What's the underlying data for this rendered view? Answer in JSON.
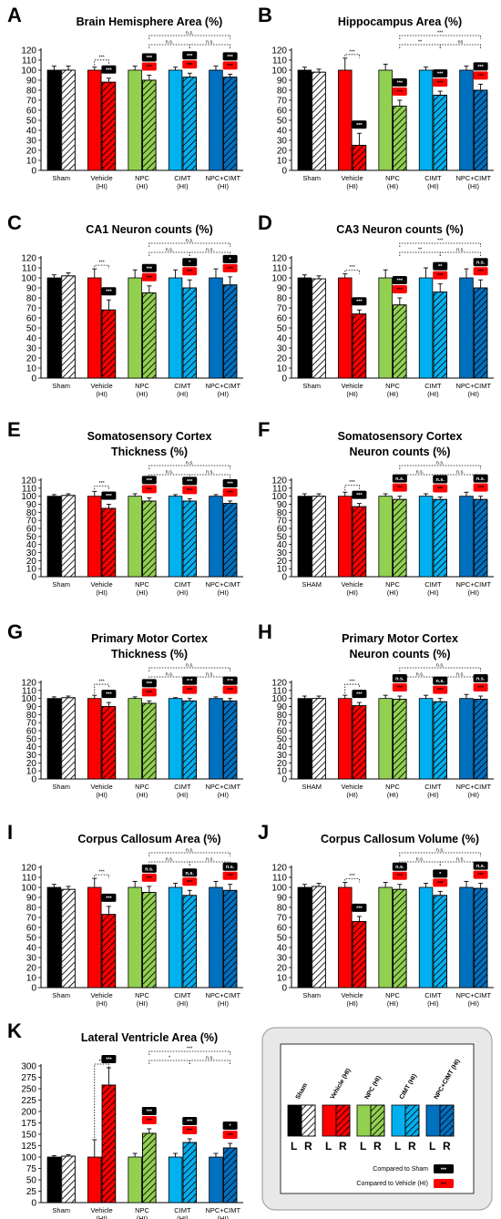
{
  "chart_data": [
    {
      "id": "A",
      "type": "bar",
      "letter": "A",
      "title": [
        "Brain Hemisphere Area (%)"
      ],
      "ylim": [
        0,
        120
      ],
      "yticks": [
        0,
        10,
        20,
        30,
        40,
        50,
        60,
        70,
        80,
        90,
        100,
        110,
        120
      ],
      "categories": [
        [
          "Sham"
        ],
        [
          "Vehicle",
          "(HI)"
        ],
        [
          "NPC",
          "(HI)"
        ],
        [
          "CIMT",
          "(HI)"
        ],
        [
          "NPC+CIMT",
          "(HI)"
        ]
      ],
      "L": [
        100,
        100,
        100,
        100,
        100
      ],
      "R": [
        100,
        88,
        90,
        93,
        93
      ],
      "L_err": [
        4,
        3,
        4,
        3,
        4
      ],
      "R_err": [
        4,
        4,
        5,
        4,
        3
      ],
      "sig_sham": [
        "",
        "***",
        "***",
        "***",
        "***"
      ],
      "sig_vehicle": [
        "",
        "",
        "***",
        "***",
        "***"
      ],
      "comparisons": [
        {
          "from": 2,
          "to": 4,
          "label": "n.s.",
          "level": 2
        },
        {
          "from": 2,
          "to": 3,
          "label": "n.s.",
          "level": 1
        },
        {
          "from": 3,
          "to": 4,
          "label": "n.s.",
          "level": 1
        }
      ]
    },
    {
      "id": "B",
      "type": "bar",
      "letter": "B",
      "title": [
        "Hippocampus Area (%)"
      ],
      "ylim": [
        0,
        120
      ],
      "yticks": [
        0,
        10,
        20,
        30,
        40,
        50,
        60,
        70,
        80,
        90,
        100,
        110,
        120
      ],
      "categories": [
        [
          "Sham"
        ],
        [
          "Vehicle",
          "(HI)"
        ],
        [
          "NPC",
          "(HI)"
        ],
        [
          "CIMT",
          "(HI)"
        ],
        [
          "NPC+CIMT",
          "(HI)"
        ]
      ],
      "L": [
        100,
        100,
        100,
        100,
        100
      ],
      "R": [
        98,
        25,
        64,
        75,
        80
      ],
      "L_err": [
        3,
        12,
        6,
        3,
        4
      ],
      "R_err": [
        3,
        12,
        6,
        4,
        6
      ],
      "sig_sham": [
        "",
        "***",
        "***",
        "***",
        "***"
      ],
      "sig_vehicle": [
        "",
        "",
        "***",
        "***",
        "***"
      ],
      "comparisons": [
        {
          "from": 2,
          "to": 4,
          "label": "***",
          "level": 2
        },
        {
          "from": 2,
          "to": 3,
          "label": "**",
          "level": 1
        },
        {
          "from": 3,
          "to": 4,
          "label": "ns",
          "level": 1
        }
      ]
    },
    {
      "id": "C",
      "type": "bar",
      "letter": "C",
      "title": [
        "CA1 Neuron counts (%)"
      ],
      "ylim": [
        0,
        120
      ],
      "yticks": [
        0,
        10,
        20,
        30,
        40,
        50,
        60,
        70,
        80,
        90,
        100,
        110,
        120
      ],
      "categories": [
        [
          "Sham"
        ],
        [
          "Vehicle",
          "(HI)"
        ],
        [
          "NPC",
          "(HI)"
        ],
        [
          "CIMT",
          "(HI)"
        ],
        [
          "NPC+CIMT",
          "(HI)"
        ]
      ],
      "L": [
        100,
        100,
        100,
        100,
        100
      ],
      "R": [
        102,
        68,
        85,
        90,
        93
      ],
      "L_err": [
        3,
        9,
        8,
        8,
        9
      ],
      "R_err": [
        3,
        10,
        7,
        8,
        8
      ],
      "sig_sham": [
        "",
        "***",
        "***",
        "*",
        "*"
      ],
      "sig_vehicle": [
        "",
        "",
        "***",
        "***",
        "***"
      ],
      "comparisons": [
        {
          "from": 2,
          "to": 4,
          "label": "n.s.",
          "level": 2
        },
        {
          "from": 2,
          "to": 3,
          "label": "n.s.",
          "level": 1
        },
        {
          "from": 3,
          "to": 4,
          "label": "n.s.",
          "level": 1
        }
      ]
    },
    {
      "id": "D",
      "type": "bar",
      "letter": "D",
      "title": [
        "CA3 Neuron counts (%)"
      ],
      "ylim": [
        0,
        120
      ],
      "yticks": [
        0,
        10,
        20,
        30,
        40,
        50,
        60,
        70,
        80,
        90,
        100,
        110,
        120
      ],
      "categories": [
        [
          "Sham"
        ],
        [
          "Vehicle",
          "(HI)"
        ],
        [
          "NPC",
          "(HI)"
        ],
        [
          "CIMT",
          "(HI)"
        ],
        [
          "NPC+CIMT",
          "(HI)"
        ]
      ],
      "L": [
        100,
        100,
        100,
        100,
        100
      ],
      "R": [
        99,
        64,
        73,
        86,
        90
      ],
      "L_err": [
        3,
        4,
        8,
        10,
        9
      ],
      "R_err": [
        3,
        4,
        7,
        8,
        8
      ],
      "sig_sham": [
        "",
        "***",
        "***",
        "**",
        "n.s."
      ],
      "sig_vehicle": [
        "",
        "",
        "***",
        "***",
        "***"
      ],
      "comparisons": [
        {
          "from": 2,
          "to": 4,
          "label": "***",
          "level": 2
        },
        {
          "from": 2,
          "to": 3,
          "label": "**",
          "level": 1
        },
        {
          "from": 3,
          "to": 4,
          "label": "n.s.",
          "level": 1
        }
      ]
    },
    {
      "id": "E",
      "type": "bar",
      "letter": "E",
      "title": [
        "Somatosensory Cortex",
        "Thickness (%)"
      ],
      "ylim": [
        0,
        120
      ],
      "yticks": [
        0,
        10,
        20,
        30,
        40,
        50,
        60,
        70,
        80,
        90,
        100,
        110,
        120
      ],
      "categories": [
        [
          "Sham"
        ],
        [
          "Vehicle",
          "(HI)"
        ],
        [
          "NPC",
          "(HI)"
        ],
        [
          "CIMT",
          "(HI)"
        ],
        [
          "NPC+CIMT",
          "(HI)"
        ]
      ],
      "L": [
        100,
        100,
        100,
        100,
        100
      ],
      "R": [
        101,
        85,
        94,
        94,
        91
      ],
      "L_err": [
        2,
        6,
        3,
        2,
        2
      ],
      "R_err": [
        2,
        5,
        4,
        3,
        3
      ],
      "sig_sham": [
        "",
        "***",
        "***",
        "***",
        "***"
      ],
      "sig_vehicle": [
        "",
        "",
        "***",
        "***",
        "***"
      ],
      "comparisons": [
        {
          "from": 2,
          "to": 4,
          "label": "n.s.",
          "level": 2
        },
        {
          "from": 2,
          "to": 3,
          "label": "n.s.",
          "level": 1
        },
        {
          "from": 3,
          "to": 4,
          "label": "n.s.",
          "level": 1
        }
      ]
    },
    {
      "id": "F",
      "type": "bar",
      "letter": "F",
      "title": [
        "Somatosensory Cortex",
        "Neuron counts (%)"
      ],
      "ylim": [
        0,
        120
      ],
      "yticks": [
        0,
        10,
        20,
        30,
        40,
        50,
        60,
        70,
        80,
        90,
        100,
        110,
        120
      ],
      "categories": [
        [
          "SHAM"
        ],
        [
          "Vehicle",
          "(HI)"
        ],
        [
          "NPC",
          "(HI)"
        ],
        [
          "CIMT",
          "(HI)"
        ],
        [
          "NPC+CIMT",
          "(HI)"
        ]
      ],
      "L": [
        100,
        100,
        100,
        100,
        100
      ],
      "R": [
        100,
        87,
        96,
        96,
        96
      ],
      "L_err": [
        3,
        5,
        3,
        3,
        5
      ],
      "R_err": [
        3,
        4,
        4,
        3,
        4
      ],
      "sig_sham": [
        "",
        "***",
        "n.s.",
        "n.s.",
        "n.s."
      ],
      "sig_vehicle": [
        "",
        "",
        "***",
        "***",
        "***"
      ],
      "comparisons": [
        {
          "from": 2,
          "to": 4,
          "label": "n.s.",
          "level": 2
        },
        {
          "from": 2,
          "to": 3,
          "label": "n.s.",
          "level": 1
        },
        {
          "from": 3,
          "to": 4,
          "label": "n.s.",
          "level": 1
        }
      ]
    },
    {
      "id": "G",
      "type": "bar",
      "letter": "G",
      "title": [
        "Primary Motor Cortex",
        "Thickness (%)"
      ],
      "ylim": [
        0,
        120
      ],
      "yticks": [
        0,
        10,
        20,
        30,
        40,
        50,
        60,
        70,
        80,
        90,
        100,
        110,
        120
      ],
      "categories": [
        [
          "Sham"
        ],
        [
          "Vehicle",
          "(HI)"
        ],
        [
          "NPC",
          "(HI)"
        ],
        [
          "CIMT",
          "(HI)"
        ],
        [
          "NPC+CIMT",
          "(HI)"
        ]
      ],
      "L": [
        100,
        100,
        100,
        100,
        100
      ],
      "R": [
        101,
        90,
        94,
        97,
        97
      ],
      "L_err": [
        2,
        4,
        2,
        1,
        2
      ],
      "R_err": [
        2,
        5,
        3,
        3,
        3
      ],
      "sig_sham": [
        "",
        "***",
        "***",
        "***",
        "***"
      ],
      "sig_vehicle": [
        "",
        "",
        "***",
        "***",
        "***"
      ],
      "comparisons": [
        {
          "from": 2,
          "to": 4,
          "label": "n.s.",
          "level": 2
        },
        {
          "from": 2,
          "to": 3,
          "label": "n.s.",
          "level": 1
        },
        {
          "from": 3,
          "to": 4,
          "label": "n.s.",
          "level": 1
        }
      ]
    },
    {
      "id": "H",
      "type": "bar",
      "letter": "H",
      "title": [
        "Primary Motor Cortex",
        "Neuron counts (%)"
      ],
      "ylim": [
        0,
        120
      ],
      "yticks": [
        0,
        10,
        20,
        30,
        40,
        50,
        60,
        70,
        80,
        90,
        100,
        110,
        120
      ],
      "categories": [
        [
          "SHAM"
        ],
        [
          "Vehicle",
          "(HI)"
        ],
        [
          "NPC",
          "(HI)"
        ],
        [
          "CIMT",
          "(HI)"
        ],
        [
          "NPC+CIMT",
          "(HI)"
        ]
      ],
      "L": [
        100,
        100,
        100,
        100,
        100
      ],
      "R": [
        100,
        91,
        99,
        96,
        99
      ],
      "L_err": [
        3,
        4,
        4,
        4,
        5
      ],
      "R_err": [
        3,
        4,
        4,
        4,
        4
      ],
      "sig_sham": [
        "",
        "***",
        "n.s.",
        "n.s.",
        "n.s."
      ],
      "sig_vehicle": [
        "",
        "",
        "***",
        "***",
        "***"
      ],
      "comparisons": [
        {
          "from": 2,
          "to": 4,
          "label": "n.s.",
          "level": 2
        },
        {
          "from": 2,
          "to": 3,
          "label": "n.s.",
          "level": 1
        },
        {
          "from": 3,
          "to": 4,
          "label": "n.s.",
          "level": 1
        }
      ]
    },
    {
      "id": "I",
      "type": "bar",
      "letter": "I",
      "title": [
        "Corpus Callosum Area (%)"
      ],
      "ylim": [
        0,
        120
      ],
      "yticks": [
        0,
        10,
        20,
        30,
        40,
        50,
        60,
        70,
        80,
        90,
        100,
        110,
        120
      ],
      "categories": [
        [
          "Sham"
        ],
        [
          "Vehicle",
          "(HI)"
        ],
        [
          "NPC",
          "(HI)"
        ],
        [
          "CIMT",
          "(HI)"
        ],
        [
          "NPC+CIMT",
          "(HI)"
        ]
      ],
      "L": [
        100,
        100,
        100,
        100,
        100
      ],
      "R": [
        98,
        73,
        95,
        92,
        97
      ],
      "L_err": [
        3,
        9,
        6,
        4,
        6
      ],
      "R_err": [
        3,
        8,
        6,
        5,
        6
      ],
      "sig_sham": [
        "",
        "***",
        "n.s.",
        "n.s.",
        "n.s."
      ],
      "sig_vehicle": [
        "",
        "",
        "***",
        "***",
        "***"
      ],
      "comparisons": [
        {
          "from": 2,
          "to": 4,
          "label": "n.s.",
          "level": 2
        },
        {
          "from": 2,
          "to": 3,
          "label": "n.s.",
          "level": 1
        },
        {
          "from": 3,
          "to": 4,
          "label": "n.s.",
          "level": 1
        }
      ]
    },
    {
      "id": "J",
      "type": "bar",
      "letter": "J",
      "title": [
        "Corpus Callosum Volume (%)"
      ],
      "ylim": [
        0,
        120
      ],
      "yticks": [
        0,
        10,
        20,
        30,
        40,
        50,
        60,
        70,
        80,
        90,
        100,
        110,
        120
      ],
      "categories": [
        [
          "Sham"
        ],
        [
          "Vehicle",
          "(HI)"
        ],
        [
          "NPC",
          "(HI)"
        ],
        [
          "CIMT",
          "(HI)"
        ],
        [
          "NPC+CIMT",
          "(HI)"
        ]
      ],
      "L": [
        100,
        100,
        100,
        100,
        100
      ],
      "R": [
        101,
        66,
        98,
        92,
        99
      ],
      "L_err": [
        3,
        5,
        5,
        4,
        6
      ],
      "R_err": [
        3,
        5,
        5,
        4,
        5
      ],
      "sig_sham": [
        "",
        "***",
        "n.s.",
        "*",
        "n.s."
      ],
      "sig_vehicle": [
        "",
        "",
        "***",
        "***",
        "***"
      ],
      "comparisons": [
        {
          "from": 2,
          "to": 4,
          "label": "n.s.",
          "level": 2
        },
        {
          "from": 2,
          "to": 3,
          "label": "n.s.",
          "level": 1
        },
        {
          "from": 3,
          "to": 4,
          "label": "n.s.",
          "level": 1
        }
      ]
    },
    {
      "id": "K",
      "type": "bar",
      "letter": "K",
      "title": [
        "Lateral Ventricle Area (%)"
      ],
      "ylim": [
        0,
        300
      ],
      "yticks": [
        0,
        25,
        50,
        75,
        100,
        125,
        150,
        175,
        200,
        225,
        250,
        275,
        300
      ],
      "categories": [
        [
          "Sham"
        ],
        [
          "Vehicle",
          "(HI)"
        ],
        [
          "NPC",
          "(HI)"
        ],
        [
          "CIMT",
          "(HI)"
        ],
        [
          "NPC+CIMT",
          "(HI)"
        ]
      ],
      "L": [
        100,
        100,
        100,
        100,
        100
      ],
      "R": [
        102,
        258,
        152,
        132,
        120
      ],
      "L_err": [
        3,
        38,
        8,
        8,
        8
      ],
      "R_err": [
        3,
        38,
        10,
        8,
        10
      ],
      "sig_sham": [
        "",
        "***",
        "***",
        "***",
        "*"
      ],
      "sig_vehicle": [
        "",
        "",
        "***",
        "***",
        "***"
      ],
      "comparisons": [
        {
          "from": 2,
          "to": 4,
          "label": "***",
          "level": 2
        },
        {
          "from": 2,
          "to": 3,
          "label": "*",
          "level": 1
        },
        {
          "from": 3,
          "to": 4,
          "label": "n.s.",
          "level": 1
        }
      ]
    }
  ],
  "colors": {
    "Sham": "#000000",
    "Vehicle": "#ff0000",
    "NPC": "#92d050",
    "CIMT": "#00b0f0",
    "NPC+CIMT": "#0070c0",
    "sig_sham_bg": "#000000",
    "sig_vehicle_bg": "#ff0000"
  },
  "legend": {
    "groups": [
      "Sham",
      "Vehicle (HI)",
      "NPC (HI)",
      "CIMT (HI)",
      "NPC+CIMT (HI)"
    ],
    "L": "L",
    "R": "R",
    "compared_sham": "Compared to Sham",
    "compared_vehicle": "Compared to Vehicle (HI)",
    "badge_text": "***"
  }
}
